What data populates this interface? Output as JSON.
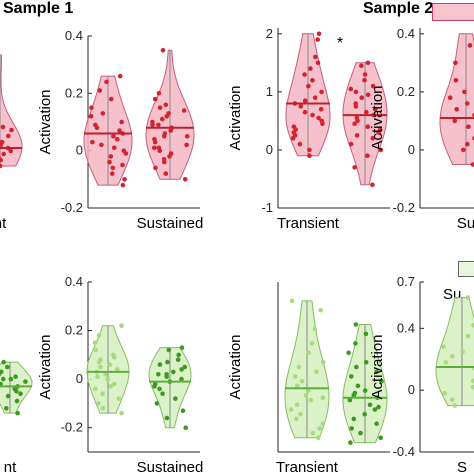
{
  "headers": {
    "sample1": "Sample 1",
    "sample2": "Sample 2"
  },
  "legend": {
    "bottom_label": "Su"
  },
  "colors": {
    "red_fill": "#f4b6c4",
    "red_edge": "#c2607a",
    "red_dot": "#d2232f",
    "red_line": "#c41e2a",
    "green_fill": "#d5efbe",
    "green_edge": "#86bd63",
    "green_dot_light": "#a6dc7e",
    "green_dot_dark": "#3c9a23",
    "green_line": "#5fae3b",
    "legend_red_fill": "#f7c3cf",
    "legend_red_edge": "#c94060",
    "legend_green_fill": "#e8f6dc",
    "legend_green_edge": "#666666"
  },
  "chart_data": [
    {
      "id": "s1_top_left_partial",
      "type": "violin",
      "row": "top",
      "ylabel": "",
      "yticks": [],
      "ylim": [
        -0.2,
        0.4
      ],
      "categories": [
        "Transient"
      ],
      "category_labels": [
        "nt"
      ],
      "series": [
        {
          "values": [
            0.31,
            0.0,
            0.02,
            -0.03,
            0.05,
            -0.01,
            0.04,
            -0.06,
            0.01,
            -0.04,
            0.03,
            0.07,
            -0.02,
            0.0,
            0.06,
            -0.05,
            0.02,
            -0.01
          ],
          "median": 0.0
        }
      ]
    },
    {
      "id": "s1_top_right",
      "type": "violin",
      "row": "top",
      "ylabel": "Activation",
      "yticks": [
        "-0.2",
        "0",
        "0.2",
        "0.4"
      ],
      "ytick_values": [
        -0.2,
        0,
        0.2,
        0.4
      ],
      "ylim": [
        -0.2,
        0.4
      ],
      "categories": [
        "Transient",
        "Sustained"
      ],
      "category_labels": [
        "",
        "Sustained"
      ],
      "series": [
        {
          "values": [
            0.26,
            0.24,
            0.21,
            0.18,
            0.15,
            0.13,
            0.1,
            0.08,
            0.06,
            0.05,
            0.04,
            0.03,
            0.01,
            0.0,
            -0.02,
            -0.04,
            -0.06,
            -0.08,
            -0.1,
            -0.12,
            0.12,
            0.07,
            -0.05,
            0.02,
            0.09,
            -0.01
          ],
          "median": 0.06,
          "range": [
            -0.14,
            0.29
          ]
        },
        {
          "values": [
            0.35,
            0.2,
            0.18,
            0.16,
            0.14,
            0.12,
            0.11,
            0.1,
            0.09,
            0.08,
            0.07,
            0.06,
            0.05,
            0.04,
            0.03,
            0.02,
            0.01,
            0.0,
            -0.01,
            -0.02,
            -0.04,
            -0.06,
            -0.08,
            -0.1,
            0.13,
            0.15,
            0.09,
            0.05,
            -0.03,
            0.01
          ],
          "median": 0.08,
          "range": [
            -0.15,
            0.36
          ]
        }
      ]
    },
    {
      "id": "s2_top_left",
      "type": "violin",
      "row": "top",
      "ylabel": "Activation",
      "yticks": [
        "-1",
        "0",
        "1",
        "2"
      ],
      "ytick_values": [
        -1,
        0,
        1,
        2
      ],
      "ylim": [
        -1,
        2.1
      ],
      "categories": [
        "Transient",
        "Sustained"
      ],
      "category_labels": [
        "Transient",
        ""
      ],
      "annotation": "*",
      "series": [
        {
          "values": [
            2.0,
            1.9,
            1.6,
            1.5,
            1.4,
            1.3,
            1.2,
            1.1,
            1.0,
            0.9,
            0.8,
            0.75,
            0.7,
            0.6,
            0.5,
            0.4,
            0.35,
            0.3,
            0.2,
            0.1,
            0.0,
            -0.1,
            0.85,
            0.65,
            0.45,
            0.25,
            0.55
          ],
          "median": 0.8,
          "range": [
            -0.2,
            2.1
          ]
        },
        {
          "values": [
            1.5,
            1.45,
            1.3,
            1.2,
            1.1,
            1.0,
            0.95,
            0.9,
            0.8,
            0.7,
            0.65,
            0.6,
            0.55,
            0.5,
            0.4,
            0.35,
            0.3,
            0.2,
            0.1,
            0.0,
            -0.1,
            -0.3,
            -0.6,
            0.75,
            0.45,
            0.25,
            1.05
          ],
          "median": 0.6,
          "range": [
            -0.7,
            1.55
          ]
        }
      ]
    },
    {
      "id": "s2_top_right_partial",
      "type": "violin",
      "row": "top",
      "ylabel": "Activation",
      "yticks": [
        "-0.2",
        "0",
        "0.2",
        "0.4"
      ],
      "ytick_values": [
        -0.2,
        0,
        0.2,
        0.4
      ],
      "ylim": [
        -0.2,
        0.42
      ],
      "categories": [
        "Sustained"
      ],
      "category_labels": [
        "Su"
      ],
      "series": [
        {
          "values": [
            0.4,
            0.36,
            0.3,
            0.24,
            0.2,
            0.16,
            0.14,
            0.12,
            0.1,
            0.08,
            0.06,
            0.04,
            0.02,
            0.0,
            -0.02,
            -0.05,
            0.18,
            0.11
          ],
          "median": 0.11
        }
      ]
    },
    {
      "id": "s1_bottom_left_partial",
      "type": "violin",
      "row": "bottom",
      "ylabel": "",
      "yticks": [],
      "ylim": [
        -0.3,
        0.4
      ],
      "categories": [
        "Transient"
      ],
      "category_labels": [
        "nt"
      ],
      "series": [
        {
          "values": [
            0.07,
            0.05,
            0.03,
            0.02,
            0.01,
            0.0,
            -0.01,
            -0.02,
            -0.03,
            -0.04,
            -0.05,
            -0.07,
            -0.09,
            -0.12,
            -0.14,
            0.0,
            -0.02,
            -0.06
          ],
          "median": -0.03
        }
      ]
    },
    {
      "id": "s1_bottom_right",
      "type": "violin",
      "row": "bottom",
      "ylabel": "Activation",
      "yticks": [
        "-0.2",
        "0",
        "0.2",
        "0.4"
      ],
      "ytick_values": [
        -0.2,
        0,
        0.2,
        0.4
      ],
      "ylim": [
        -0.3,
        0.4
      ],
      "categories": [
        "Transient",
        "Sustained"
      ],
      "category_labels": [
        "",
        "Sustained"
      ],
      "series": [
        {
          "values": [
            0.22,
            0.18,
            0.15,
            0.12,
            0.1,
            0.08,
            0.06,
            0.05,
            0.04,
            0.03,
            0.02,
            0.01,
            0.0,
            -0.02,
            -0.04,
            -0.06,
            -0.08,
            -0.1,
            -0.12,
            -0.14,
            0.07,
            0.09,
            -0.03
          ],
          "median": 0.03,
          "range": [
            -0.16,
            0.24
          ]
        },
        {
          "values": [
            0.13,
            0.12,
            0.1,
            0.08,
            0.06,
            0.05,
            0.04,
            0.03,
            0.02,
            0.01,
            0.0,
            -0.01,
            -0.02,
            -0.04,
            -0.06,
            -0.08,
            -0.1,
            -0.13,
            -0.16,
            -0.2,
            0.07,
            -0.03,
            0.02
          ],
          "median": -0.01,
          "range": [
            -0.22,
            0.14
          ]
        }
      ]
    },
    {
      "id": "s2_bottom_left",
      "type": "violin",
      "row": "bottom",
      "ylabel": "Activation",
      "yticks": [],
      "ylim": [
        -0.3,
        3.3
      ],
      "categories": [
        "Transient",
        "Sustained"
      ],
      "category_labels": [
        "Transient",
        ""
      ],
      "series": [
        {
          "values": [
            2.9,
            2.7,
            2.3,
            2.0,
            1.8,
            1.6,
            1.4,
            1.3,
            1.2,
            1.1,
            1.0,
            0.9,
            0.8,
            0.7,
            0.6,
            0.5,
            0.4,
            0.3,
            0.2,
            0.1,
            0.0,
            1.5,
            0.85
          ],
          "median": 1.05,
          "range": [
            -0.1,
            3.0
          ]
        },
        {
          "values": [
            2.4,
            2.2,
            2.0,
            1.8,
            1.6,
            1.4,
            1.3,
            1.2,
            1.1,
            1.0,
            0.9,
            0.85,
            0.8,
            0.7,
            0.6,
            0.5,
            0.4,
            0.3,
            0.2,
            0.1,
            0.0,
            -0.1,
            1.5,
            0.95,
            0.65
          ],
          "median": 0.85,
          "range": [
            -0.2,
            2.5
          ]
        }
      ]
    },
    {
      "id": "s2_bottom_right_partial",
      "type": "violin",
      "row": "bottom",
      "ylabel": "Activation",
      "yticks": [
        "-0.4",
        "0",
        "0.4",
        "0.7"
      ],
      "ytick_values": [
        -0.4,
        0,
        0.4,
        0.7
      ],
      "ylim": [
        -0.4,
        0.7
      ],
      "categories": [
        "Sustained"
      ],
      "category_labels": [
        "S"
      ],
      "series": [
        {
          "values": [
            0.6,
            0.5,
            0.42,
            0.35,
            0.28,
            0.22,
            0.18,
            0.14,
            0.1,
            0.06,
            0.02,
            -0.02,
            -0.06,
            -0.1,
            0.25,
            0.12
          ],
          "median": 0.15
        }
      ]
    }
  ]
}
